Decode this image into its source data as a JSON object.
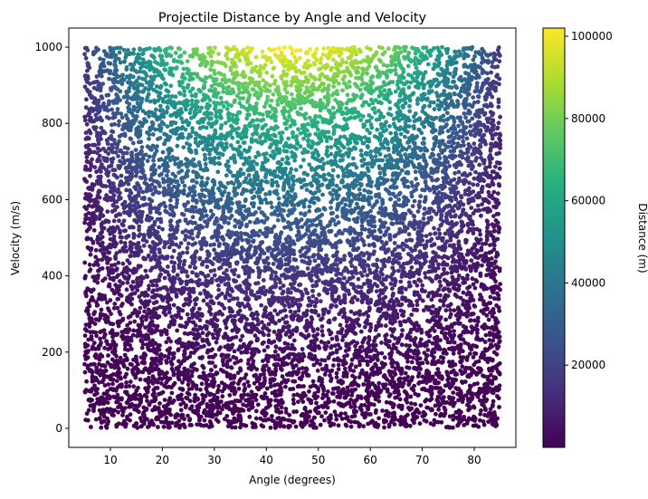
{
  "chart_data": {
    "type": "scatter",
    "title": "Projectile Distance by Angle and Velocity",
    "xlabel": "Angle (degrees)",
    "ylabel": "Velocity (m/s)",
    "xlim": [
      2,
      88
    ],
    "ylim": [
      -50,
      1050
    ],
    "xticks": [
      10,
      20,
      30,
      40,
      50,
      60,
      70,
      80
    ],
    "yticks": [
      0,
      200,
      400,
      600,
      800,
      1000
    ],
    "x_range_of_points": [
      5,
      85
    ],
    "y_range_of_points": [
      1,
      1000
    ],
    "point_count": 10000,
    "value_formula": "distance = velocity^2 * sin(2*angle) / 9.81",
    "colorbar": {
      "label": "Distance (m)",
      "colormap": "viridis",
      "range": [
        0,
        102000
      ],
      "ticks": [
        20000,
        40000,
        60000,
        80000,
        100000
      ]
    },
    "grid": false,
    "legend": "none"
  }
}
